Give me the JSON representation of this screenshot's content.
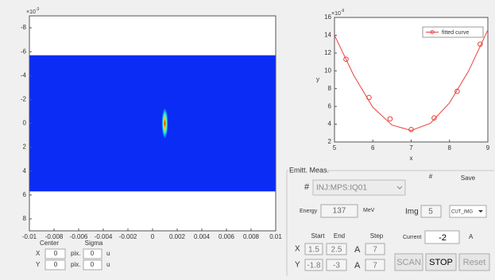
{
  "chart_data": [
    {
      "type": "image",
      "xlim": [
        -0.01,
        0.01
      ],
      "ylim": [
        -9,
        9
      ],
      "y_reversed": true,
      "xticks": [
        -0.01,
        -0.008,
        -0.006,
        -0.004,
        -0.002,
        0,
        0.002,
        0.004,
        0.006,
        0.008,
        0.01
      ],
      "yticks": [
        -8,
        -6,
        -4,
        -2,
        0,
        2,
        4,
        6,
        8
      ],
      "y_multiplier": {
        "base": "×10",
        "exp": "-3"
      },
      "band": {
        "ylim": [
          -5.7,
          5.7
        ],
        "color": "#0a2cf5"
      },
      "spot": {
        "x": 0.001,
        "y": 0,
        "half_height": 1.3
      }
    },
    {
      "type": "line",
      "xlabel": "x",
      "ylabel": "y",
      "xlim": [
        5,
        9
      ],
      "ylim": [
        2,
        16
      ],
      "xticks": [
        5,
        6,
        7,
        8,
        9
      ],
      "yticks": [
        2,
        4,
        6,
        8,
        10,
        12,
        14,
        16
      ],
      "y_multiplier": {
        "base": "×10",
        "exp": "-9"
      },
      "legend": "upper right",
      "color": "#e8413c",
      "series": [
        {
          "name": "fitted curve",
          "x": [
            5,
            5.5,
            6,
            6.5,
            7,
            7.5,
            8,
            8.5,
            9
          ],
          "values": [
            14.0,
            9.5,
            5.9,
            3.9,
            3.3,
            4.1,
            6.4,
            10.0,
            14.6
          ]
        }
      ],
      "points": {
        "x": [
          5.3,
          5.9,
          6.45,
          7.0,
          7.6,
          8.2,
          8.8
        ],
        "values": [
          11.3,
          7.0,
          4.6,
          3.4,
          4.7,
          7.7,
          13.0
        ]
      }
    }
  ],
  "beam_stats": {
    "headers": [
      "Center",
      "Sigma"
    ],
    "rows": [
      [
        "X",
        "0",
        "pix.",
        "0",
        "u"
      ],
      [
        "Y",
        "0",
        "pix.",
        "0",
        "u"
      ]
    ]
  },
  "emittance_panel": {
    "title": "Emitt. Meas.",
    "pv_label": "#",
    "pv": "INJ:MPS:IQ01",
    "img_header": "#",
    "save_header": "Save",
    "energy_label": "Energy",
    "energy": "137",
    "energy_unit": "MeV",
    "img_label": "Img",
    "img": "5",
    "save_option": "CUT_IMG",
    "scan_headers": [
      "Start",
      "End",
      "Step"
    ],
    "scan_rows": [
      [
        "X",
        "1.5",
        "2.5",
        "A",
        "7"
      ],
      [
        "Y",
        "-1.8",
        "-3",
        "A",
        "7"
      ]
    ],
    "current_label": "Current",
    "current": "-2",
    "current_unit": "A",
    "buttons": [
      "SCAN",
      "STOP",
      "Reset"
    ]
  }
}
